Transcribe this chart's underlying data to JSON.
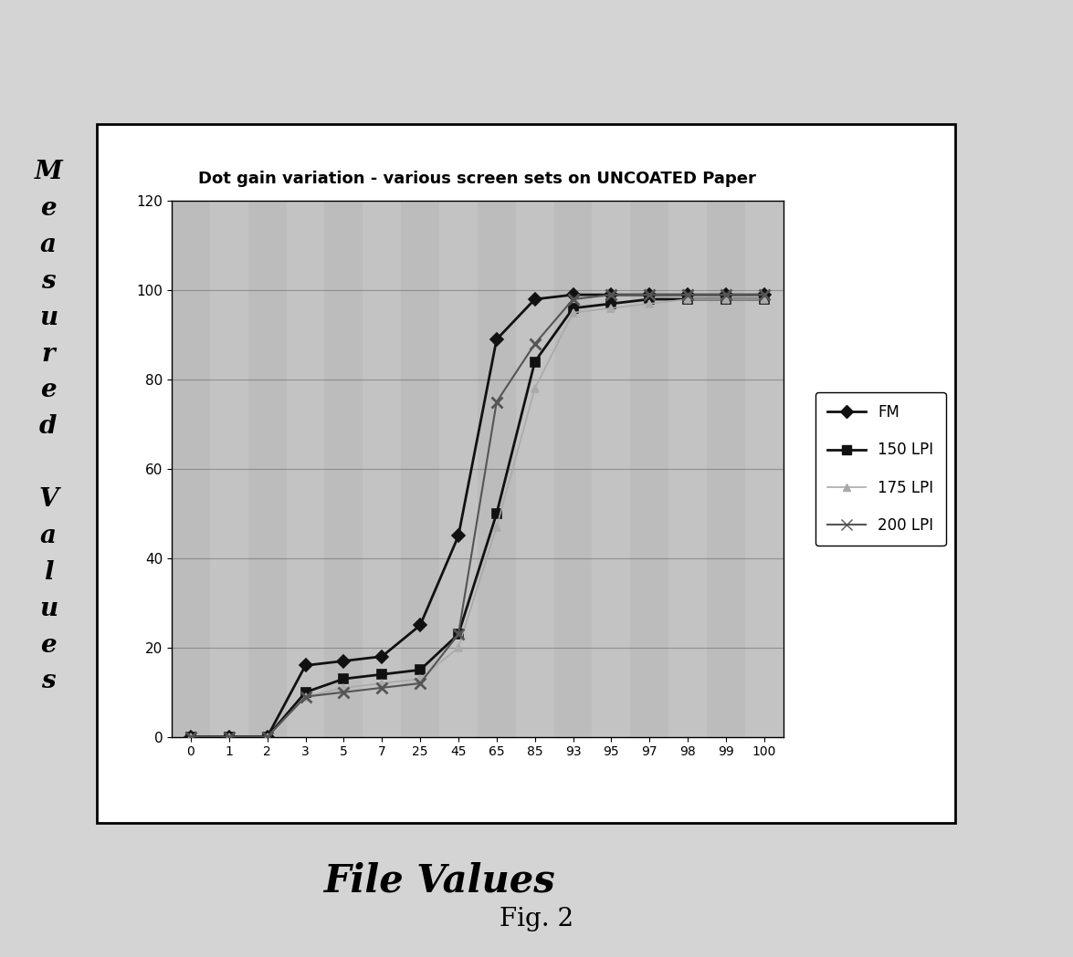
{
  "title": "Dot gain variation - various screen sets on UNCOATED Paper",
  "xlabel": "File Values",
  "ylabel_chars": [
    "M",
    "e",
    "a",
    "s",
    "u",
    "r",
    "e",
    "d",
    "",
    "V",
    "a",
    "l",
    "u",
    "e",
    "s"
  ],
  "x_labels": [
    "0",
    "1",
    "2",
    "3",
    "5",
    "7",
    "25",
    "45",
    "65",
    "85",
    "93",
    "95",
    "97",
    "98",
    "99",
    "100"
  ],
  "fig_caption": "Fig. 2",
  "series": [
    {
      "label": "FM",
      "color": "#111111",
      "marker": "D",
      "markersize": 7,
      "linewidth": 2.0,
      "linestyle": "solid",
      "values": [
        0,
        0,
        0,
        16,
        17,
        18,
        25,
        45,
        89,
        98,
        99,
        99,
        99,
        99,
        99,
        99
      ]
    },
    {
      "label": "150 LPI",
      "color": "#111111",
      "marker": "s",
      "markersize": 7,
      "linewidth": 2.0,
      "linestyle": "solid",
      "values": [
        0,
        0,
        0,
        10,
        13,
        14,
        15,
        23,
        50,
        84,
        96,
        97,
        98,
        98,
        98,
        98
      ]
    },
    {
      "label": "175 LPI",
      "color": "#aaaaaa",
      "marker": "^",
      "markersize": 6,
      "linewidth": 1.2,
      "linestyle": "solid",
      "values": [
        0,
        0,
        0,
        9,
        11,
        12,
        13,
        20,
        47,
        78,
        95,
        96,
        97,
        98,
        98,
        98
      ]
    },
    {
      "label": "200 LPI",
      "color": "#555555",
      "marker": "x",
      "markersize": 9,
      "linewidth": 1.5,
      "linestyle": "solid",
      "values": [
        0,
        0,
        0,
        9,
        10,
        11,
        12,
        23,
        75,
        88,
        98,
        99,
        99,
        99,
        99,
        99
      ]
    }
  ],
  "ylim": [
    0,
    120
  ],
  "yticks": [
    0,
    20,
    40,
    60,
    80,
    100,
    120
  ],
  "fig_bg": "#d4d4d4",
  "outer_box_bg": "#ffffff",
  "title_area_bg": "#ffffff",
  "plot_bg": "#c0c0c0",
  "title_fontsize": 13,
  "xlabel_fontsize": 30,
  "ylabel_fontsize": 20,
  "caption_fontsize": 20,
  "tick_fontsize": 10,
  "legend_fontsize": 12
}
